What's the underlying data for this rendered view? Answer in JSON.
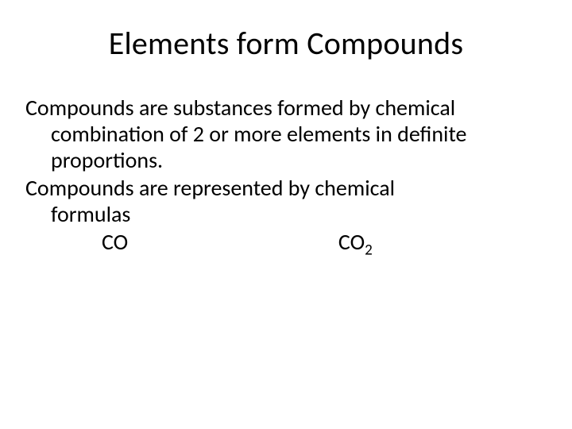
{
  "slide": {
    "title": "Elements form Compounds",
    "body": {
      "p1_first": "Compounds are substances formed by chemical",
      "p1_rest": "combination of 2 or more elements in definite proportions.",
      "p2_first": "Compounds are represented by chemical",
      "p2_rest": "formulas"
    },
    "formulas": {
      "f1": "CO",
      "f2_base": "CO",
      "f2_sub": "2"
    }
  },
  "style": {
    "background_color": "#ffffff",
    "text_color": "#000000",
    "title_fontsize": 40,
    "body_fontsize": 28,
    "font_family": "Calibri"
  }
}
